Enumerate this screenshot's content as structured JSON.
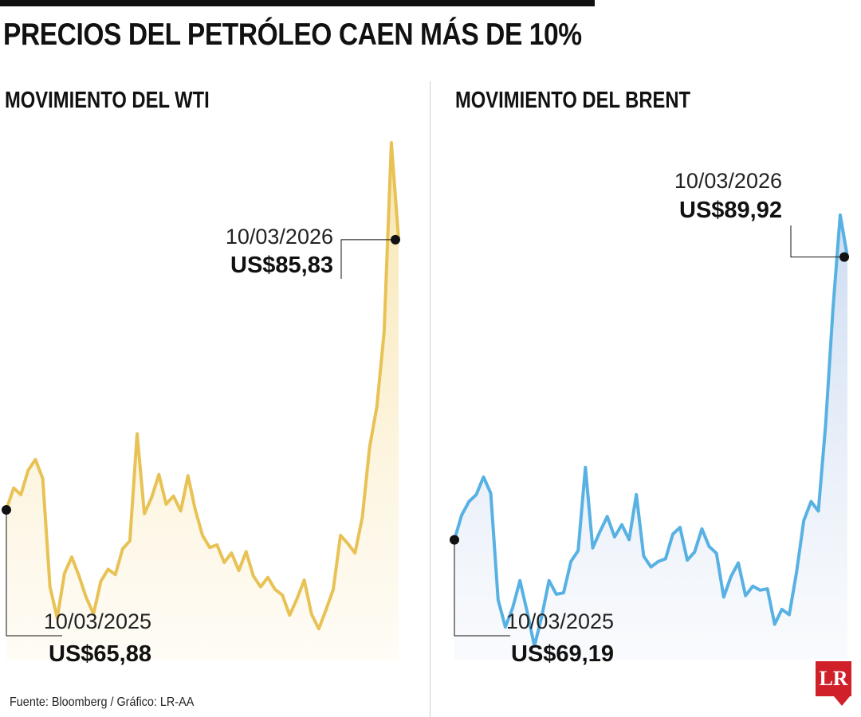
{
  "title": "PRECIOS DEL PETRÓLEO CAEN MÁS DE 10%",
  "source": "Fuente: Bloomberg / Gráfico: LR-AA",
  "logo": "LR",
  "colors": {
    "wti": "#e8c255",
    "brent": "#58b1e3",
    "accent": "#d0202a"
  },
  "chart_data": [
    {
      "type": "area",
      "title": "MOVIMIENTO DEL WTI",
      "start": {
        "date": "10/03/2025",
        "label": "US$65,88",
        "value": 65.88
      },
      "end": {
        "date": "10/03/2026",
        "label": "US$85,83",
        "value": 85.83
      },
      "x_range": [
        "10/03/2025",
        "10/03/2026"
      ],
      "ylim": [
        55,
        95
      ],
      "values": [
        65.9,
        67.5,
        67.0,
        68.8,
        69.6,
        68.2,
        60.2,
        57.9,
        61.2,
        62.4,
        61.0,
        59.4,
        58.2,
        60.6,
        61.5,
        61.1,
        63.0,
        63.6,
        71.5,
        65.6,
        66.8,
        68.5,
        66.3,
        66.9,
        65.8,
        68.4,
        65.9,
        64.0,
        63.1,
        63.3,
        62.0,
        62.7,
        61.4,
        62.8,
        61.0,
        60.2,
        60.9,
        60.0,
        59.6,
        58.1,
        59.3,
        60.7,
        58.2,
        57.1,
        58.5,
        60.0,
        64.0,
        63.4,
        62.7,
        65.3,
        70.5,
        73.5,
        79.0,
        93.0,
        85.83
      ]
    },
    {
      "type": "area",
      "title": "MOVIMIENTO DEL BRENT",
      "start": {
        "date": "10/03/2025",
        "label": "US$69,19",
        "value": 69.19
      },
      "end": {
        "date": "10/03/2026",
        "label": "US$89,92",
        "value": 89.92
      },
      "x_range": [
        "10/03/2025",
        "10/03/2026"
      ],
      "ylim": [
        60,
        100
      ],
      "values": [
        69.2,
        71.0,
        72.0,
        72.5,
        73.8,
        72.6,
        64.8,
        62.8,
        64.2,
        66.2,
        63.9,
        61.4,
        63.6,
        66.2,
        65.2,
        65.3,
        67.6,
        68.4,
        74.5,
        68.6,
        69.8,
        70.9,
        69.4,
        70.3,
        69.2,
        72.5,
        68.0,
        67.2,
        67.6,
        67.8,
        69.6,
        70.1,
        67.7,
        68.3,
        70.0,
        68.7,
        68.2,
        65.0,
        66.5,
        67.5,
        65.1,
        65.8,
        65.5,
        65.6,
        63.0,
        64.1,
        63.7,
        66.8,
        70.6,
        72.0,
        71.3,
        77.6,
        86.0,
        93.0,
        89.92
      ]
    }
  ]
}
